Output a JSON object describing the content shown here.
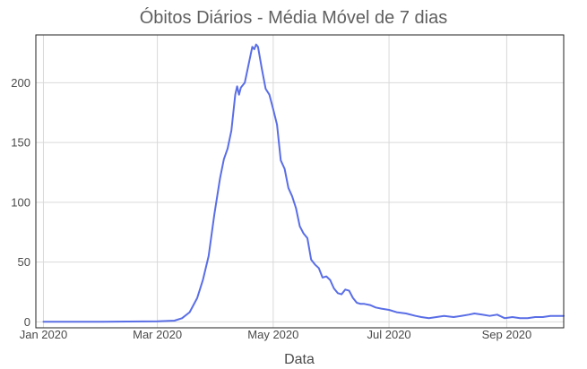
{
  "chart_data": {
    "type": "line",
    "title": "Óbitos Diários - Média Móvel de 7 dias",
    "xlabel": "Data",
    "ylabel": "",
    "x_type": "date",
    "xlim": [
      "2019-12-28",
      "2020-10-01"
    ],
    "ylim": [
      -5,
      240
    ],
    "grid": true,
    "x_ticks": [
      {
        "date": "2020-01-01",
        "label": "Jan 2020"
      },
      {
        "date": "2020-03-01",
        "label": "Mar 2020"
      },
      {
        "date": "2020-05-01",
        "label": "May 2020"
      },
      {
        "date": "2020-07-01",
        "label": "Jul 2020"
      },
      {
        "date": "2020-09-01",
        "label": "Sep 2020"
      }
    ],
    "y_ticks": [
      0,
      50,
      100,
      150,
      200
    ],
    "series": [
      {
        "color": "#5a6ee6",
        "points": [
          [
            "2020-01-01",
            0
          ],
          [
            "2020-02-01",
            0
          ],
          [
            "2020-03-01",
            0.5
          ],
          [
            "2020-03-10",
            1
          ],
          [
            "2020-03-14",
            3
          ],
          [
            "2020-03-18",
            8
          ],
          [
            "2020-03-22",
            20
          ],
          [
            "2020-03-25",
            35
          ],
          [
            "2020-03-28",
            55
          ],
          [
            "2020-03-31",
            90
          ],
          [
            "2020-04-03",
            120
          ],
          [
            "2020-04-05",
            136
          ],
          [
            "2020-04-07",
            145
          ],
          [
            "2020-04-09",
            160
          ],
          [
            "2020-04-11",
            190
          ],
          [
            "2020-04-12",
            197
          ],
          [
            "2020-04-13",
            190
          ],
          [
            "2020-04-14",
            196
          ],
          [
            "2020-04-16",
            200
          ],
          [
            "2020-04-18",
            215
          ],
          [
            "2020-04-20",
            230
          ],
          [
            "2020-04-21",
            228
          ],
          [
            "2020-04-22",
            232
          ],
          [
            "2020-04-23",
            230
          ],
          [
            "2020-04-25",
            212
          ],
          [
            "2020-04-27",
            195
          ],
          [
            "2020-04-29",
            190
          ],
          [
            "2020-05-01",
            178
          ],
          [
            "2020-05-03",
            165
          ],
          [
            "2020-05-05",
            135
          ],
          [
            "2020-05-07",
            128
          ],
          [
            "2020-05-09",
            112
          ],
          [
            "2020-05-11",
            105
          ],
          [
            "2020-05-13",
            95
          ],
          [
            "2020-05-15",
            80
          ],
          [
            "2020-05-17",
            74
          ],
          [
            "2020-05-19",
            70
          ],
          [
            "2020-05-21",
            52
          ],
          [
            "2020-05-23",
            48
          ],
          [
            "2020-05-25",
            45
          ],
          [
            "2020-05-27",
            37
          ],
          [
            "2020-05-29",
            38
          ],
          [
            "2020-05-31",
            35
          ],
          [
            "2020-06-02",
            28
          ],
          [
            "2020-06-04",
            24
          ],
          [
            "2020-06-06",
            23
          ],
          [
            "2020-06-08",
            27
          ],
          [
            "2020-06-10",
            26
          ],
          [
            "2020-06-12",
            20
          ],
          [
            "2020-06-14",
            16
          ],
          [
            "2020-06-16",
            15
          ],
          [
            "2020-06-18",
            15
          ],
          [
            "2020-06-21",
            14
          ],
          [
            "2020-06-24",
            12
          ],
          [
            "2020-06-27",
            11
          ],
          [
            "2020-07-01",
            10
          ],
          [
            "2020-07-05",
            8
          ],
          [
            "2020-07-10",
            7
          ],
          [
            "2020-07-15",
            5
          ],
          [
            "2020-07-18",
            4
          ],
          [
            "2020-07-22",
            3
          ],
          [
            "2020-07-26",
            4
          ],
          [
            "2020-07-30",
            5
          ],
          [
            "2020-08-04",
            4
          ],
          [
            "2020-08-08",
            5
          ],
          [
            "2020-08-12",
            6
          ],
          [
            "2020-08-15",
            7
          ],
          [
            "2020-08-19",
            6
          ],
          [
            "2020-08-23",
            5
          ],
          [
            "2020-08-27",
            6
          ],
          [
            "2020-08-31",
            3
          ],
          [
            "2020-09-04",
            4
          ],
          [
            "2020-09-08",
            3
          ],
          [
            "2020-09-12",
            3
          ],
          [
            "2020-09-16",
            4
          ],
          [
            "2020-09-20",
            4
          ],
          [
            "2020-09-24",
            5
          ],
          [
            "2020-09-28",
            5
          ],
          [
            "2020-10-01",
            5
          ]
        ]
      }
    ]
  }
}
